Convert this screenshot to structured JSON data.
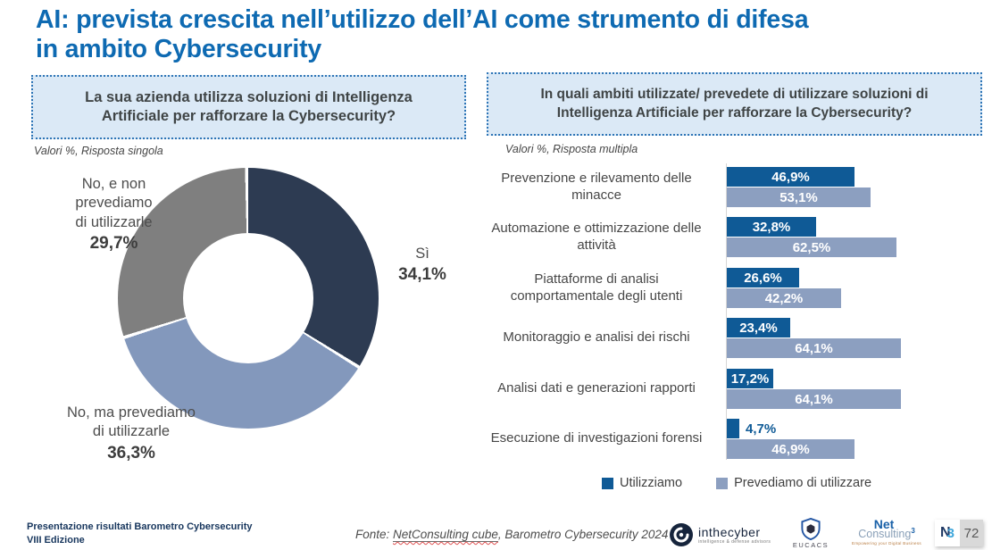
{
  "title_line1": "AI: prevista crescita nell’utilizzo dell’AI come strumento di difesa",
  "title_line2": "in ambito Cybersecurity",
  "left_panel": {
    "question": "La sua azienda utilizza soluzioni di Intelligenza Artificiale per rafforzare la Cybersecurity?",
    "note": "Valori %, Risposta singola"
  },
  "right_panel": {
    "question": "In quali ambiti utilizzate/ prevedete di utilizzare soluzioni di Intelligenza Artificiale per rafforzare la Cybersecurity?",
    "note": "Valori %, Risposta multipla"
  },
  "chart_data": [
    {
      "type": "pie",
      "donut": true,
      "title": "La sua azienda utilizza soluzioni di Intelligenza Artificiale per rafforzare la Cybersecurity?",
      "labels": [
        "Sì",
        "No, ma prevediamo di utilizzarle",
        "No, e non prevediamo di utilizzarle"
      ],
      "values": [
        34.1,
        36.3,
        29.7
      ],
      "display_values": [
        "34,1%",
        "36,3%",
        "29,7%"
      ],
      "colors": [
        "#2d3b52",
        "#8398bc",
        "#7f7f7f"
      ],
      "start_angle_deg": 0,
      "direction": "clockwise",
      "callouts": [
        {
          "lines": [
            "Sì"
          ],
          "value": "34,1%"
        },
        {
          "lines": [
            "No, ma prevediamo",
            "di utilizzarle"
          ],
          "value": "36,3%"
        },
        {
          "lines": [
            "No, e non",
            "prevediamo",
            "di utilizzarle"
          ],
          "value": "29,7%"
        }
      ]
    },
    {
      "type": "bar",
      "orientation": "horizontal",
      "title": "In quali ambiti utilizzate/ prevedete di utilizzare soluzioni di Intelligenza Artificiale per rafforzare la Cybersecurity?",
      "categories": [
        "Prevenzione e rilevamento delle minacce",
        "Automazione e ottimizzazione delle attività",
        "Piattaforme di analisi comportamentale degli utenti",
        "Monitoraggio e analisi dei rischi",
        "Analisi dati e generazioni rapporti",
        "Esecuzione di investigazioni forensi"
      ],
      "series": [
        {
          "name": "Utilizziamo",
          "color": "#0f5a96",
          "values": [
            46.9,
            32.8,
            26.6,
            23.4,
            17.2,
            4.7
          ],
          "display_values": [
            "46,9%",
            "32,8%",
            "26,6%",
            "23,4%",
            "17,2%",
            "4,7%"
          ]
        },
        {
          "name": "Prevediamo di utilizzare",
          "color": "#8c9fc0",
          "values": [
            53.1,
            62.5,
            42.2,
            64.1,
            64.1,
            46.9
          ],
          "display_values": [
            "53,1%",
            "62,5%",
            "42,2%",
            "64,1%",
            "64,1%",
            "46,9%"
          ]
        }
      ],
      "xlim": [
        0,
        70
      ],
      "grid": false,
      "legend_position": "bottom",
      "value_labels": "inside-white-bold"
    }
  ],
  "footer": {
    "presentation_line1": "Presentazione risultati Barometro Cybersecurity",
    "presentation_line2": "VIII Edizione",
    "source_prefix": "Fonte: ",
    "source_underlined": "NetConsulting cube",
    "source_suffix": ", Barometro Cybersecurity 2024",
    "page_number": "72",
    "logos": {
      "inthecyber_name": "inthecyber",
      "inthecyber_tagline": "intelligence & defense advisors",
      "eucacs_name": "EUCACS",
      "nc_line1": "Net",
      "nc_line2": "Consulting",
      "nc_sup": "3",
      "nc_tagline": "Empowering your Digital Business",
      "n3_n": "N",
      "n3_3": "3"
    }
  }
}
